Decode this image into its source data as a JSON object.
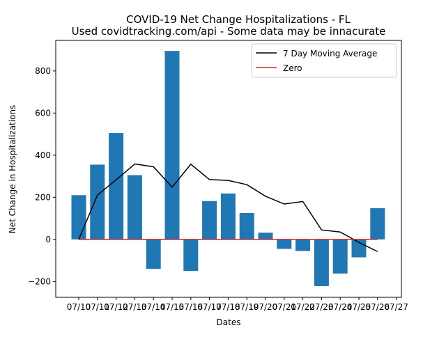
{
  "chart_data": {
    "type": "bar",
    "title": "COVID-19 Net Change Hospitalizations - FL",
    "subtitle": "Used covidtracking.com/api - Some data may be innacurate",
    "xlabel": "Dates",
    "ylabel": "Net Change in Hospitalizations",
    "x_tick_labels": [
      "07/10",
      "07/11",
      "07/12",
      "07/13",
      "07/14",
      "07/15",
      "07/16",
      "07/17",
      "07/18",
      "07/19",
      "07/20",
      "07/21",
      "07/22",
      "07/23",
      "07/24",
      "07/25",
      "07/26",
      "07/27"
    ],
    "y_ticks": [
      -200,
      0,
      200,
      400,
      600,
      800
    ],
    "y_tick_labels": [
      "−200",
      "0",
      "200",
      "400",
      "600",
      "800"
    ],
    "ylim": [
      -275,
      945
    ],
    "grid": false,
    "legend_position": "upper right",
    "series": [
      {
        "kind": "bar",
        "color": "#1f77b4",
        "values": [
          210,
          355,
          505,
          305,
          -140,
          895,
          -150,
          182,
          218,
          125,
          32,
          -45,
          -55,
          -222,
          -162,
          -85,
          148
        ]
      },
      {
        "kind": "line",
        "name": "7 Day Moving Average",
        "color": "#000000",
        "values": [
          0,
          210,
          283,
          358,
          345,
          248,
          357,
          284,
          280,
          260,
          205,
          168,
          180,
          45,
          35,
          -14,
          -58
        ]
      },
      {
        "kind": "line",
        "name": "Zero",
        "color": "#d62728",
        "values": [
          0,
          0,
          0,
          0,
          0,
          0,
          0,
          0,
          0,
          0,
          0,
          0,
          0,
          0,
          0,
          0,
          0
        ]
      }
    ]
  }
}
